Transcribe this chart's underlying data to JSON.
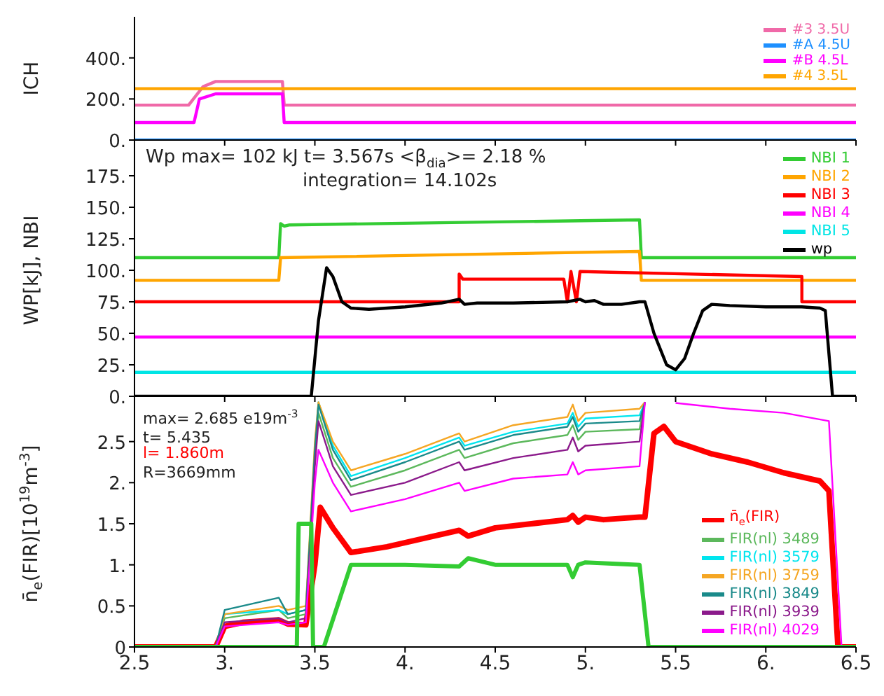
{
  "chart_data": [
    {
      "type": "line",
      "ylabel": "ICH",
      "xlim": [
        2.5,
        6.5
      ],
      "xticks": [
        2.5,
        3,
        3.5,
        4,
        4.5,
        5,
        5.5,
        6,
        6.5
      ],
      "ylim": [
        0,
        600
      ],
      "yticks": [
        {
          "value": 0,
          "label": "0."
        },
        {
          "value": 200,
          "label": "200."
        },
        {
          "value": 400,
          "label": "400."
        }
      ],
      "tick_labels": "y",
      "legend": "top right",
      "series": [
        {
          "name": "#3 3.5U",
          "color": "#f069a8",
          "x": [
            2.5,
            2.8,
            2.88,
            2.95,
            3.32,
            3.33,
            6.5
          ],
          "values": [
            170,
            170,
            260,
            285,
            285,
            170,
            170
          ]
        },
        {
          "name": "#A 4.5U",
          "color": "#1e90ff",
          "x": [
            2.5,
            6.5
          ],
          "values": [
            0,
            0
          ]
        },
        {
          "name": "#B 4.5L",
          "color": "#ff00ff",
          "x": [
            2.5,
            2.83,
            2.86,
            2.95,
            3.32,
            3.33,
            6.5
          ],
          "values": [
            85,
            85,
            200,
            225,
            225,
            85,
            85
          ]
        },
        {
          "name": "#4 3.5L",
          "color": "#ffa500",
          "x": [
            2.5,
            6.5
          ],
          "values": [
            250,
            250
          ]
        }
      ]
    },
    {
      "type": "line",
      "ylabel": "WP[kJ], NBI",
      "xlim": [
        2.5,
        6.5
      ],
      "xticks": [
        2.5,
        3,
        3.5,
        4,
        4.5,
        5,
        5.5,
        6,
        6.5
      ],
      "ylim": [
        0,
        200
      ],
      "yticks": [
        {
          "value": 0,
          "label": "0."
        },
        {
          "value": 25,
          "label": "25."
        },
        {
          "value": 50,
          "label": "50."
        },
        {
          "value": 75,
          "label": "75."
        },
        {
          "value": 100,
          "label": "100."
        },
        {
          "value": 125,
          "label": "125."
        },
        {
          "value": 150,
          "label": "150."
        },
        {
          "value": 175,
          "label": "175."
        }
      ],
      "tick_labels": "y",
      "legend": "top right",
      "annotations": [
        "Wp max= 102 kJ t= 3.567s <β$_{dia}$>= 2.18 %",
        "integration= 14.102s"
      ],
      "series": [
        {
          "name": "NBI 1",
          "color": "#33cc33",
          "x": [
            2.5,
            3.3,
            3.31,
            3.33,
            3.36,
            5.3,
            5.31,
            6.5
          ],
          "values": [
            110,
            110,
            137,
            135,
            136,
            140,
            110,
            110
          ]
        },
        {
          "name": "NBI 2",
          "color": "#ffa500",
          "x": [
            2.5,
            3.3,
            3.31,
            5.3,
            5.31,
            6.5
          ],
          "values": [
            92,
            92,
            110,
            115,
            92,
            92
          ]
        },
        {
          "name": "NBI 3",
          "color": "#ff0000",
          "x": [
            2.5,
            4.3,
            4.3,
            4.32,
            4.88,
            4.9,
            4.92,
            4.95,
            4.97,
            6.2,
            6.2,
            6.5
          ],
          "values": [
            75,
            75,
            97,
            93,
            93,
            75,
            99,
            75,
            99,
            95,
            75,
            75
          ]
        },
        {
          "name": "NBI 4",
          "color": "#ff00ff",
          "x": [
            2.5,
            6.5
          ],
          "values": [
            47,
            47
          ]
        },
        {
          "name": "NBI 5",
          "color": "#00e5e5",
          "x": [
            2.5,
            6.5
          ],
          "values": [
            19,
            19
          ]
        },
        {
          "name": "wp",
          "color": "#000000",
          "x": [
            2.5,
            3.48,
            3.52,
            3.565,
            3.6,
            3.65,
            3.7,
            3.8,
            4.0,
            4.2,
            4.3,
            4.33,
            4.4,
            4.6,
            4.9,
            4.97,
            5.0,
            5.05,
            5.1,
            5.2,
            5.3,
            5.33,
            5.38,
            5.45,
            5.5,
            5.55,
            5.6,
            5.65,
            5.7,
            5.8,
            6.0,
            6.2,
            6.3,
            6.33,
            6.37,
            6.5
          ],
          "values": [
            0,
            0,
            60,
            102,
            95,
            75,
            70,
            69,
            71,
            74,
            77,
            73,
            74,
            74,
            75,
            77,
            75,
            76,
            73,
            73,
            75,
            75,
            50,
            25,
            21,
            30,
            50,
            68,
            73,
            72,
            71,
            71,
            70,
            68,
            0,
            0
          ]
        }
      ]
    },
    {
      "type": "line",
      "ylabel": "n̄$_{e}$(FIR)[10$^{19}$m$^{-3}$]",
      "xlim": [
        2.5,
        6.5
      ],
      "xticks": [
        {
          "value": 2.5,
          "label": "2.5"
        },
        {
          "value": 3,
          "label": "3."
        },
        {
          "value": 3.5,
          "label": "3.5"
        },
        {
          "value": 4,
          "label": "4."
        },
        {
          "value": 4.5,
          "label": "4.5"
        },
        {
          "value": 5,
          "label": "5."
        },
        {
          "value": 5.5,
          "label": "5.5"
        },
        {
          "value": 6,
          "label": "6."
        },
        {
          "value": 6.5,
          "label": "6.5"
        }
      ],
      "ylim": [
        0,
        3
      ],
      "yticks": [
        0,
        0.5,
        {
          "value": 1,
          "label": "1."
        },
        1.5,
        {
          "value": 2,
          "label": "2."
        },
        2.5
      ],
      "legend": "bottom right",
      "annotations": [
        "max= 2.685 e19m$^{-3}$ t= 5.435",
        "l= 1.860m",
        "R=3669mm"
      ],
      "series": [
        {
          "name": "n̄$_{e}$(FIR)",
          "color": "#ff0000",
          "x": [
            2.5,
            2.95,
            3.0,
            3.1,
            3.3,
            3.35,
            3.45,
            3.5,
            3.53,
            3.6,
            3.7,
            3.9,
            4.1,
            4.3,
            4.35,
            4.5,
            4.7,
            4.9,
            4.93,
            4.96,
            5.0,
            5.1,
            5.3,
            5.33,
            5.38,
            5.435,
            5.5,
            5.7,
            5.9,
            6.1,
            6.3,
            6.35,
            6.4,
            6.5
          ],
          "values": [
            0,
            0,
            0.25,
            0.3,
            0.33,
            0.28,
            0.27,
            1.0,
            1.7,
            1.45,
            1.15,
            1.22,
            1.32,
            1.42,
            1.35,
            1.45,
            1.5,
            1.55,
            1.6,
            1.52,
            1.58,
            1.55,
            1.58,
            1.58,
            2.6,
            2.685,
            2.5,
            2.35,
            2.25,
            2.12,
            2.02,
            1.9,
            0,
            0
          ]
        },
        {
          "name": "FIR(nl) 3489",
          "color": "#5cb85c",
          "x": [
            2.5,
            2.95,
            3.0,
            3.3,
            3.35,
            3.45,
            3.5,
            3.52,
            3.6,
            3.7,
            4.0,
            4.3,
            4.33,
            4.6,
            4.9,
            4.93,
            4.96,
            5.0,
            5.3,
            5.33
          ],
          "values": [
            0,
            0,
            0.35,
            0.45,
            0.35,
            0.4,
            2.3,
            2.85,
            2.3,
            1.95,
            2.15,
            2.4,
            2.3,
            2.48,
            2.58,
            2.7,
            2.52,
            2.62,
            2.65,
            2.98
          ]
        },
        {
          "name": "FIR(nl) 3579",
          "color": "#00e5ee",
          "x": [
            2.5,
            2.95,
            3.0,
            3.3,
            3.35,
            3.45,
            3.5,
            3.52,
            3.6,
            3.7,
            4.0,
            4.3,
            4.33,
            4.6,
            4.9,
            4.93,
            4.96,
            5.0,
            5.3,
            5.33
          ],
          "values": [
            0,
            0,
            0.4,
            0.45,
            0.4,
            0.45,
            2.45,
            2.98,
            2.45,
            2.08,
            2.3,
            2.55,
            2.45,
            2.62,
            2.72,
            2.85,
            2.68,
            2.78,
            2.82,
            2.98
          ]
        },
        {
          "name": "FIR(nl) 3759",
          "color": "#f5a623",
          "x": [
            2.5,
            2.95,
            3.0,
            3.3,
            3.35,
            3.45,
            3.5,
            3.52,
            3.6,
            3.7,
            4.0,
            4.3,
            4.33,
            4.6,
            4.9,
            4.93,
            4.96,
            5.0,
            5.3,
            5.33
          ],
          "values": [
            0,
            0,
            0.4,
            0.5,
            0.45,
            0.5,
            2.5,
            2.98,
            2.5,
            2.15,
            2.35,
            2.6,
            2.5,
            2.7,
            2.8,
            2.95,
            2.75,
            2.85,
            2.9,
            2.98
          ]
        },
        {
          "name": "FIR(nl) 3849",
          "color": "#1a8a8a",
          "x": [
            2.5,
            2.95,
            3.0,
            3.3,
            3.35,
            3.45,
            3.5,
            3.52,
            3.6,
            3.7,
            4.0,
            4.3,
            4.33,
            4.6,
            4.9,
            4.93,
            4.96,
            5.0,
            5.3,
            5.33
          ],
          "values": [
            0,
            0,
            0.45,
            0.6,
            0.4,
            0.45,
            2.4,
            2.95,
            2.4,
            2.03,
            2.25,
            2.5,
            2.4,
            2.58,
            2.68,
            2.8,
            2.62,
            2.72,
            2.75,
            2.98
          ]
        },
        {
          "name": "FIR(nl) 3939",
          "color": "#8b1a8b",
          "x": [
            2.5,
            2.95,
            3.0,
            3.3,
            3.35,
            3.45,
            3.5,
            3.52,
            3.6,
            3.7,
            4.0,
            4.3,
            4.33,
            4.6,
            4.9,
            4.93,
            4.96,
            5.0,
            5.3,
            5.33
          ],
          "values": [
            0,
            0,
            0.3,
            0.35,
            0.3,
            0.35,
            2.2,
            2.75,
            2.2,
            1.85,
            2.0,
            2.25,
            2.15,
            2.3,
            2.4,
            2.55,
            2.38,
            2.45,
            2.5,
            2.98
          ]
        },
        {
          "name": "FIR(nl) 4029",
          "color": "#ff00ff",
          "x": [
            2.5,
            2.95,
            3.0,
            3.3,
            3.35,
            3.45,
            3.5,
            3.52,
            3.6,
            3.7,
            4.0,
            4.3,
            4.33,
            4.6,
            4.9,
            4.93,
            4.96,
            5.0,
            5.3,
            5.33,
            5.4,
            5.5,
            5.8,
            6.1,
            6.35,
            6.42,
            6.5
          ],
          "values": [
            0,
            0,
            0.25,
            0.3,
            0.27,
            0.3,
            2.0,
            2.4,
            2.0,
            1.65,
            1.8,
            2.0,
            1.9,
            2.05,
            2.1,
            2.25,
            2.1,
            2.15,
            2.2,
            2.98,
            null,
            2.97,
            2.9,
            2.85,
            2.75,
            0,
            0
          ]
        },
        {
          "color": "#33cc33",
          "x": [
            2.5,
            3.4,
            3.41,
            3.48,
            3.49,
            3.55,
            3.7,
            4.0,
            4.3,
            4.35,
            4.5,
            4.9,
            4.93,
            4.96,
            5.0,
            5.3,
            5.35,
            6.5
          ],
          "values": [
            0,
            0,
            1.5,
            1.5,
            0,
            0,
            1.0,
            1.0,
            0.98,
            1.08,
            1.0,
            1.0,
            0.85,
            1.0,
            1.03,
            1.0,
            0,
            0
          ]
        }
      ]
    }
  ]
}
